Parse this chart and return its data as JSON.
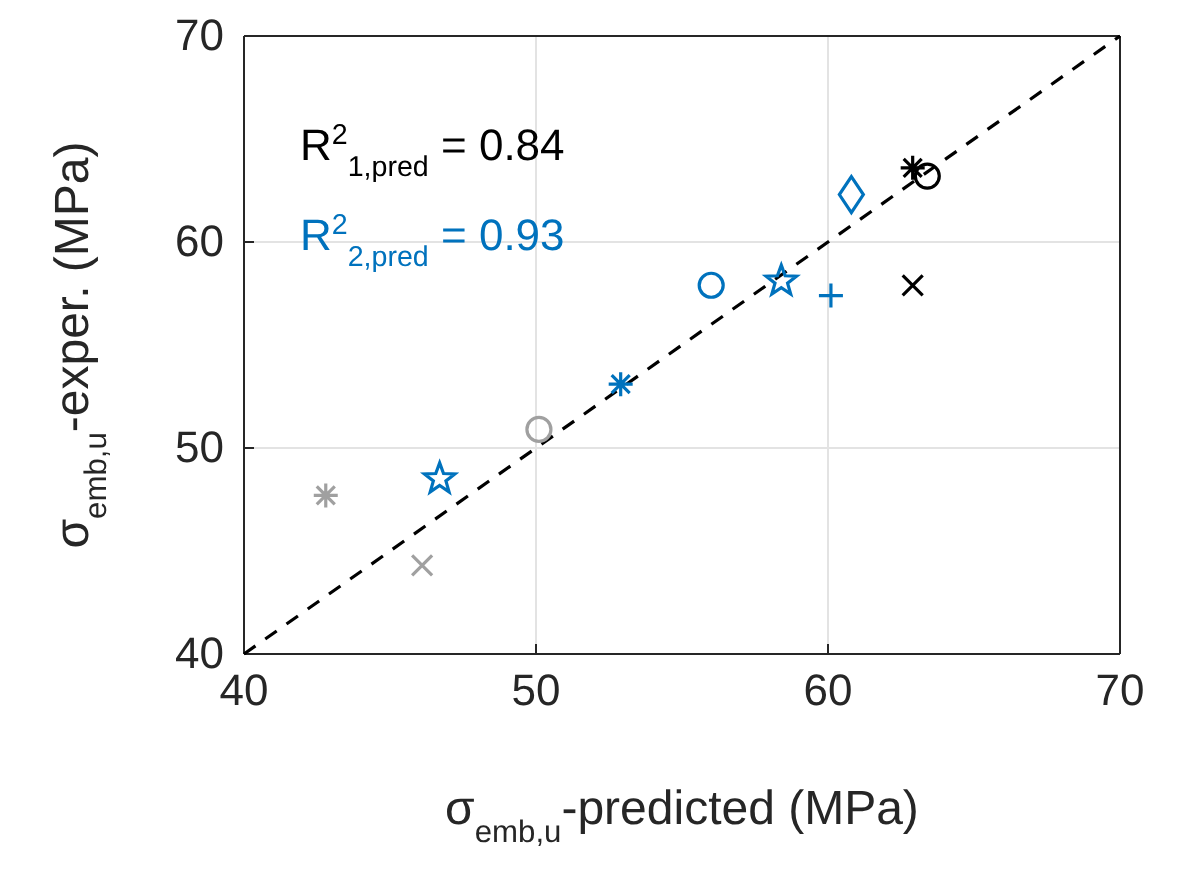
{
  "chart_data": {
    "type": "scatter",
    "xlabel": "σ$_{emb,u}$-predicted (MPa)",
    "ylabel": "σ$_{emb,u}$-exper. (MPa)",
    "xlim": [
      40,
      70
    ],
    "ylim": [
      40,
      70
    ],
    "xticks": [
      40,
      50,
      60,
      70
    ],
    "yticks": [
      40,
      50,
      60,
      70
    ],
    "grid": true,
    "annotations": [
      "R$^{2}$$_{1,pred}$ = 0.84",
      "R$^{2}$$_{2,pred}$ = 0.93"
    ],
    "series": [
      {
        "type": "line",
        "color": "#000000",
        "line_style": "dashed",
        "marker": "none",
        "x": [
          40,
          70
        ],
        "values": [
          40,
          70
        ]
      },
      {
        "color": "#a0a0a0",
        "marker": "cross",
        "x": [
          42.8
        ],
        "values": [
          47.7
        ]
      },
      {
        "color": "#a0a0a0",
        "marker": "x",
        "x": [
          46.1
        ],
        "values": [
          44.3
        ]
      },
      {
        "color": "#a0a0a0",
        "marker": "circle",
        "x": [
          50.1
        ],
        "values": [
          50.9
        ]
      },
      {
        "color": "#0072bd",
        "marker": "star",
        "x": [
          46.7
        ],
        "values": [
          48.5
        ]
      },
      {
        "color": "#0072bd",
        "marker": "cross",
        "x": [
          52.9
        ],
        "values": [
          53.1
        ]
      },
      {
        "color": "#0072bd",
        "marker": "circle",
        "x": [
          56.0
        ],
        "values": [
          57.9
        ]
      },
      {
        "color": "#0072bd",
        "marker": "star",
        "x": [
          58.4
        ],
        "values": [
          58.1
        ]
      },
      {
        "color": "#0072bd",
        "marker": "plus",
        "x": [
          60.1
        ],
        "values": [
          57.4
        ]
      },
      {
        "color": "#0072bd",
        "marker": "diamond",
        "x": [
          60.8
        ],
        "values": [
          62.3
        ]
      },
      {
        "color": "#000000",
        "marker": "cross",
        "x": [
          62.9
        ],
        "values": [
          63.6
        ]
      },
      {
        "color": "#000000",
        "marker": "circle",
        "x": [
          63.4
        ],
        "values": [
          63.2
        ]
      },
      {
        "color": "#000000",
        "marker": "x",
        "x": [
          62.9
        ],
        "values": [
          57.9
        ]
      }
    ]
  }
}
